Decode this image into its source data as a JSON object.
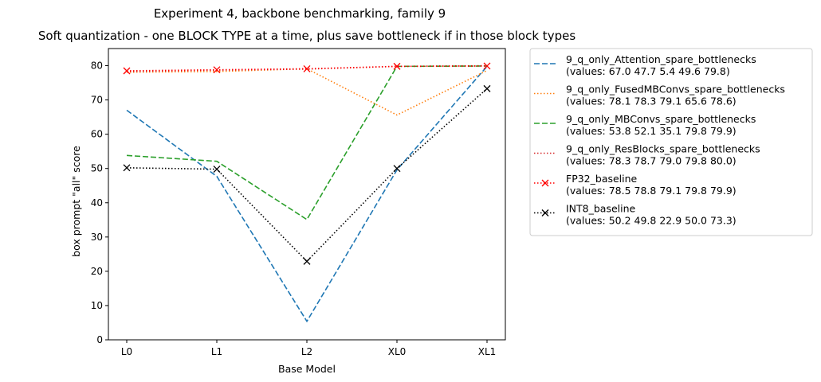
{
  "chart_data": {
    "type": "line",
    "suptitle": "Experiment 4, backbone benchmarking, family 9",
    "title": "Soft quantization - one BLOCK TYPE at a time, plus save bottleneck if in those block types",
    "xlabel": "Base Model",
    "ylabel": "box prompt \"all\" score",
    "categories": [
      "L0",
      "L1",
      "L2",
      "XL0",
      "XL1"
    ],
    "ylim": [
      0,
      85
    ],
    "yticks": [
      0,
      10,
      20,
      30,
      40,
      50,
      60,
      70,
      80
    ],
    "grid": false,
    "legend_position": "outside-right",
    "series": [
      {
        "name": "9_q_only_Attention_spare_bottlenecks",
        "values_label": "(values: 67.0 47.7 5.4 49.6 79.8)",
        "values": [
          67.0,
          47.7,
          5.4,
          49.6,
          79.8
        ],
        "color": "#1f77b4",
        "linestyle": "dashed",
        "marker": "none"
      },
      {
        "name": "9_q_only_FusedMBConvs_spare_bottlenecks",
        "values_label": "(values: 78.1 78.3 79.1 65.6 78.6)",
        "values": [
          78.1,
          78.3,
          79.1,
          65.6,
          78.6
        ],
        "color": "#ff7f0e",
        "linestyle": "dotted",
        "marker": "none"
      },
      {
        "name": "9_q_only_MBConvs_spare_bottlenecks",
        "values_label": "(values: 53.8 52.1 35.1 79.8 79.9)",
        "values": [
          53.8,
          52.1,
          35.1,
          79.8,
          79.9
        ],
        "color": "#2ca02c",
        "linestyle": "dashed",
        "marker": "none"
      },
      {
        "name": "9_q_only_ResBlocks_spare_bottlenecks",
        "values_label": "(values: 78.3 78.7 79.0 79.8 80.0)",
        "values": [
          78.3,
          78.7,
          79.0,
          79.8,
          80.0
        ],
        "color": "#d62728",
        "linestyle": "dotted",
        "marker": "none"
      },
      {
        "name": "FP32_baseline",
        "values_label": "(values: 78.5 78.8 79.1 79.8 79.9)",
        "values": [
          78.5,
          78.8,
          79.1,
          79.8,
          79.9
        ],
        "color": "#ff0000",
        "linestyle": "dotted",
        "marker": "x"
      },
      {
        "name": "INT8_baseline",
        "values_label": "(values: 50.2 49.8 22.9 50.0 73.3)",
        "values": [
          50.2,
          49.8,
          22.9,
          50.0,
          73.3
        ],
        "color": "#000000",
        "linestyle": "dotted",
        "marker": "x"
      }
    ]
  }
}
